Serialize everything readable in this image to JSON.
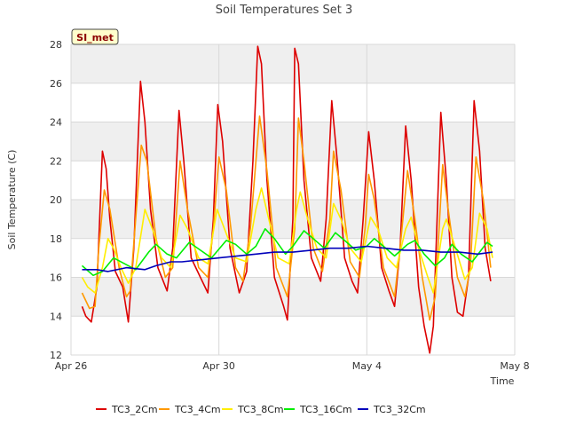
{
  "chart_data": {
    "type": "line",
    "title": "Soil Temperatures Set 3",
    "xlabel": "Time",
    "ylabel": "Soil Temperature (C)",
    "badge": "SI_met",
    "xlim": [
      0,
      12
    ],
    "ylim": [
      12,
      28
    ],
    "xticks": [
      {
        "value": 0,
        "label": "Apr 26"
      },
      {
        "value": 4,
        "label": "Apr 30"
      },
      {
        "value": 8,
        "label": "May 4"
      },
      {
        "value": 12,
        "label": "May 8"
      }
    ],
    "yticks": [
      12,
      14,
      16,
      18,
      20,
      22,
      24,
      26,
      28
    ],
    "grid": true,
    "legend_position": "bottom",
    "series": [
      {
        "name": "TC3_2Cm",
        "color": "#dd0000",
        "points": [
          [
            0.3,
            14.5
          ],
          [
            0.4,
            14.0
          ],
          [
            0.55,
            13.7
          ],
          [
            0.7,
            15.5
          ],
          [
            0.85,
            22.5
          ],
          [
            0.95,
            21.6
          ],
          [
            1.05,
            19.0
          ],
          [
            1.2,
            16.3
          ],
          [
            1.4,
            15.5
          ],
          [
            1.55,
            13.7
          ],
          [
            1.7,
            17.5
          ],
          [
            1.88,
            26.1
          ],
          [
            2.0,
            24.0
          ],
          [
            2.15,
            19.5
          ],
          [
            2.35,
            16.5
          ],
          [
            2.6,
            15.3
          ],
          [
            2.75,
            17.5
          ],
          [
            2.92,
            24.6
          ],
          [
            3.05,
            22.0
          ],
          [
            3.25,
            17.0
          ],
          [
            3.5,
            16.0
          ],
          [
            3.7,
            15.2
          ],
          [
            3.85,
            19.0
          ],
          [
            3.97,
            24.9
          ],
          [
            4.1,
            23.0
          ],
          [
            4.3,
            17.5
          ],
          [
            4.55,
            15.2
          ],
          [
            4.75,
            16.3
          ],
          [
            4.92,
            22.0
          ],
          [
            5.05,
            27.9
          ],
          [
            5.15,
            27.0
          ],
          [
            5.3,
            21.0
          ],
          [
            5.5,
            16.0
          ],
          [
            5.75,
            14.5
          ],
          [
            5.85,
            13.8
          ],
          [
            6.0,
            19.0
          ],
          [
            6.05,
            27.8
          ],
          [
            6.15,
            27.0
          ],
          [
            6.3,
            21.0
          ],
          [
            6.5,
            17.0
          ],
          [
            6.75,
            15.8
          ],
          [
            6.9,
            19.0
          ],
          [
            7.05,
            25.1
          ],
          [
            7.2,
            22.0
          ],
          [
            7.4,
            17.0
          ],
          [
            7.6,
            15.8
          ],
          [
            7.75,
            15.2
          ],
          [
            7.9,
            19.0
          ],
          [
            8.05,
            23.5
          ],
          [
            8.2,
            21.0
          ],
          [
            8.4,
            16.5
          ],
          [
            8.6,
            15.3
          ],
          [
            8.75,
            14.5
          ],
          [
            8.9,
            17.5
          ],
          [
            9.05,
            23.8
          ],
          [
            9.2,
            21.0
          ],
          [
            9.4,
            15.5
          ],
          [
            9.55,
            13.5
          ],
          [
            9.7,
            12.1
          ],
          [
            9.8,
            13.5
          ],
          [
            10.0,
            24.5
          ],
          [
            10.15,
            21.0
          ],
          [
            10.3,
            16.0
          ],
          [
            10.45,
            14.2
          ],
          [
            10.6,
            14.0
          ],
          [
            10.75,
            16.0
          ],
          [
            10.9,
            25.1
          ],
          [
            11.05,
            22.5
          ],
          [
            11.2,
            17.5
          ],
          [
            11.35,
            15.8
          ]
        ]
      },
      {
        "name": "TC3_4Cm",
        "color": "#ff9900",
        "points": [
          [
            0.3,
            15.2
          ],
          [
            0.5,
            14.4
          ],
          [
            0.65,
            14.5
          ],
          [
            0.75,
            17.5
          ],
          [
            0.9,
            20.5
          ],
          [
            1.05,
            19.5
          ],
          [
            1.3,
            16.5
          ],
          [
            1.5,
            15.0
          ],
          [
            1.6,
            15.3
          ],
          [
            1.9,
            22.8
          ],
          [
            2.05,
            22.0
          ],
          [
            2.3,
            18.0
          ],
          [
            2.55,
            16.0
          ],
          [
            2.75,
            16.5
          ],
          [
            2.95,
            22.0
          ],
          [
            3.15,
            19.5
          ],
          [
            3.45,
            16.5
          ],
          [
            3.7,
            16.0
          ],
          [
            3.85,
            18.5
          ],
          [
            4.0,
            22.2
          ],
          [
            4.2,
            20.5
          ],
          [
            4.45,
            16.5
          ],
          [
            4.65,
            15.8
          ],
          [
            4.85,
            18.5
          ],
          [
            5.1,
            24.3
          ],
          [
            5.3,
            21.5
          ],
          [
            5.55,
            16.5
          ],
          [
            5.85,
            15.0
          ],
          [
            6.05,
            18.5
          ],
          [
            6.15,
            24.2
          ],
          [
            6.3,
            22.0
          ],
          [
            6.55,
            17.5
          ],
          [
            6.8,
            16.3
          ],
          [
            7.0,
            19.0
          ],
          [
            7.1,
            22.5
          ],
          [
            7.3,
            20.5
          ],
          [
            7.55,
            16.8
          ],
          [
            7.8,
            16.0
          ],
          [
            7.95,
            18.5
          ],
          [
            8.05,
            21.3
          ],
          [
            8.2,
            20.0
          ],
          [
            8.45,
            16.5
          ],
          [
            8.75,
            15.0
          ],
          [
            8.9,
            17.5
          ],
          [
            9.1,
            21.5
          ],
          [
            9.3,
            19.0
          ],
          [
            9.5,
            16.0
          ],
          [
            9.7,
            13.8
          ],
          [
            9.85,
            15.0
          ],
          [
            10.05,
            21.8
          ],
          [
            10.2,
            19.5
          ],
          [
            10.45,
            16.0
          ],
          [
            10.65,
            15.0
          ],
          [
            10.8,
            16.5
          ],
          [
            10.95,
            22.2
          ],
          [
            11.15,
            20.0
          ],
          [
            11.35,
            16.5
          ]
        ]
      },
      {
        "name": "TC3_8Cm",
        "color": "#ffee00",
        "points": [
          [
            0.3,
            16.0
          ],
          [
            0.45,
            15.5
          ],
          [
            0.65,
            15.2
          ],
          [
            0.85,
            16.5
          ],
          [
            1.0,
            18.0
          ],
          [
            1.15,
            17.5
          ],
          [
            1.35,
            16.5
          ],
          [
            1.55,
            15.7
          ],
          [
            1.75,
            16.5
          ],
          [
            2.0,
            19.5
          ],
          [
            2.2,
            18.5
          ],
          [
            2.45,
            17.0
          ],
          [
            2.7,
            16.5
          ],
          [
            2.95,
            19.2
          ],
          [
            3.15,
            18.5
          ],
          [
            3.45,
            17.0
          ],
          [
            3.7,
            16.7
          ],
          [
            3.95,
            19.5
          ],
          [
            4.15,
            18.5
          ],
          [
            4.45,
            17.0
          ],
          [
            4.75,
            16.8
          ],
          [
            5.0,
            19.5
          ],
          [
            5.15,
            20.6
          ],
          [
            5.35,
            19.0
          ],
          [
            5.6,
            17.0
          ],
          [
            5.9,
            16.7
          ],
          [
            6.1,
            19.5
          ],
          [
            6.2,
            20.4
          ],
          [
            6.4,
            19.0
          ],
          [
            6.65,
            17.5
          ],
          [
            6.9,
            17.0
          ],
          [
            7.1,
            19.8
          ],
          [
            7.3,
            19.0
          ],
          [
            7.55,
            17.5
          ],
          [
            7.85,
            16.8
          ],
          [
            8.1,
            19.1
          ],
          [
            8.3,
            18.5
          ],
          [
            8.55,
            17.0
          ],
          [
            8.8,
            16.5
          ],
          [
            9.05,
            18.5
          ],
          [
            9.2,
            19.1
          ],
          [
            9.4,
            17.5
          ],
          [
            9.65,
            16.0
          ],
          [
            9.8,
            15.2
          ],
          [
            10.05,
            18.5
          ],
          [
            10.15,
            19.0
          ],
          [
            10.4,
            17.5
          ],
          [
            10.65,
            15.9
          ],
          [
            10.85,
            16.5
          ],
          [
            11.05,
            19.3
          ],
          [
            11.25,
            18.5
          ],
          [
            11.4,
            17.0
          ]
        ]
      },
      {
        "name": "TC3_16Cm",
        "color": "#00ee00",
        "points": [
          [
            0.3,
            16.6
          ],
          [
            0.6,
            16.1
          ],
          [
            0.85,
            16.3
          ],
          [
            1.15,
            17.0
          ],
          [
            1.45,
            16.7
          ],
          [
            1.75,
            16.4
          ],
          [
            2.1,
            17.3
          ],
          [
            2.3,
            17.7
          ],
          [
            2.6,
            17.2
          ],
          [
            2.85,
            17.0
          ],
          [
            3.2,
            17.8
          ],
          [
            3.5,
            17.4
          ],
          [
            3.8,
            17.0
          ],
          [
            4.2,
            17.9
          ],
          [
            4.45,
            17.7
          ],
          [
            4.75,
            17.2
          ],
          [
            5.0,
            17.6
          ],
          [
            5.25,
            18.5
          ],
          [
            5.5,
            18.0
          ],
          [
            5.8,
            17.2
          ],
          [
            6.0,
            17.6
          ],
          [
            6.3,
            18.4
          ],
          [
            6.55,
            18.0
          ],
          [
            6.85,
            17.5
          ],
          [
            7.15,
            18.3
          ],
          [
            7.4,
            17.9
          ],
          [
            7.7,
            17.4
          ],
          [
            8.0,
            17.6
          ],
          [
            8.2,
            18.0
          ],
          [
            8.45,
            17.6
          ],
          [
            8.75,
            17.1
          ],
          [
            9.1,
            17.7
          ],
          [
            9.3,
            17.9
          ],
          [
            9.55,
            17.2
          ],
          [
            9.85,
            16.6
          ],
          [
            10.1,
            17.0
          ],
          [
            10.3,
            17.7
          ],
          [
            10.55,
            17.2
          ],
          [
            10.85,
            16.8
          ],
          [
            11.05,
            17.3
          ],
          [
            11.25,
            17.8
          ],
          [
            11.4,
            17.6
          ]
        ]
      },
      {
        "name": "TC3_32Cm",
        "color": "#0000bb",
        "points": [
          [
            0.3,
            16.4
          ],
          [
            0.7,
            16.4
          ],
          [
            1.0,
            16.3
          ],
          [
            1.5,
            16.5
          ],
          [
            2.0,
            16.4
          ],
          [
            2.3,
            16.6
          ],
          [
            2.7,
            16.8
          ],
          [
            3.0,
            16.8
          ],
          [
            3.5,
            16.9
          ],
          [
            4.0,
            17.0
          ],
          [
            4.5,
            17.1
          ],
          [
            5.0,
            17.2
          ],
          [
            5.5,
            17.3
          ],
          [
            6.0,
            17.3
          ],
          [
            6.5,
            17.4
          ],
          [
            7.0,
            17.5
          ],
          [
            7.5,
            17.5
          ],
          [
            8.0,
            17.6
          ],
          [
            8.5,
            17.5
          ],
          [
            9.0,
            17.4
          ],
          [
            9.5,
            17.4
          ],
          [
            10.0,
            17.3
          ],
          [
            10.5,
            17.3
          ],
          [
            11.0,
            17.2
          ],
          [
            11.4,
            17.3
          ]
        ]
      }
    ]
  }
}
